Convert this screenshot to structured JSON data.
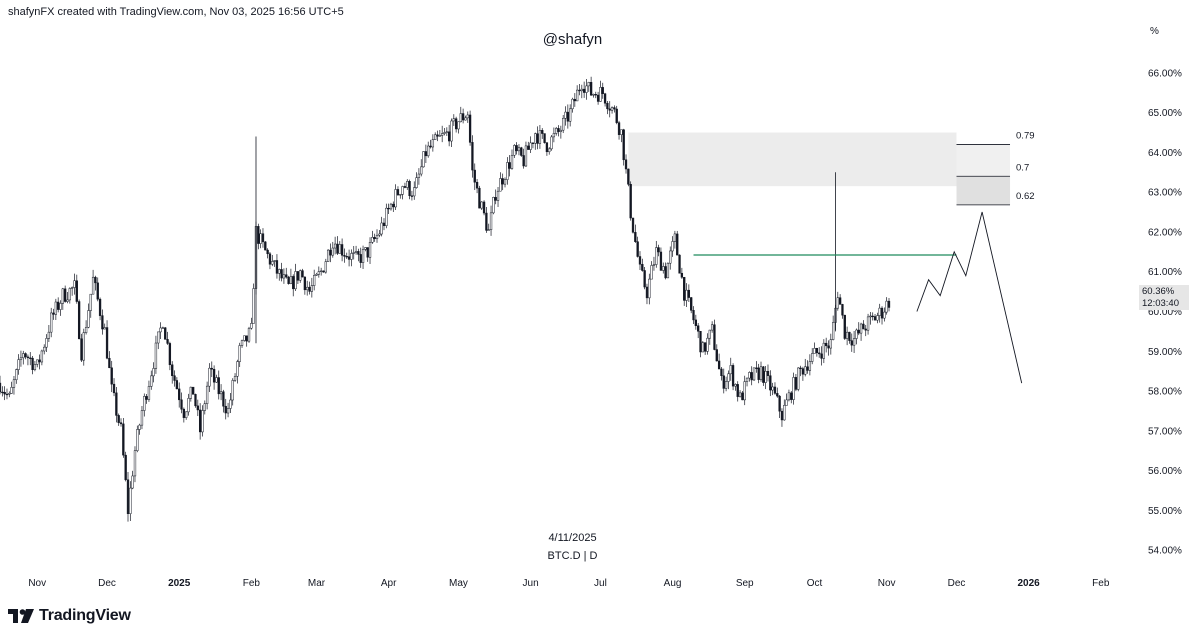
{
  "header": {
    "credit": "shafynFX created with TradingView.com, Nov 03, 2025 16:56 UTC+5",
    "watermark": "@shafyn",
    "percent_unit": "%"
  },
  "footer": {
    "center_date": "4/11/2025",
    "symbol": "BTC.D | D",
    "logo_text": "TradingView"
  },
  "price_tags": {
    "current": "60.36%",
    "countdown": "12:03:40"
  },
  "colors": {
    "candle": "#131722",
    "horizontal_line": "#1f8a5c",
    "zone_fill": "#ececec",
    "fib_fill_light": "#f0f0f0",
    "fib_fill_dark": "#e0e0e0"
  },
  "chart_data": {
    "type": "line",
    "symbol": "BTC.D",
    "interval": "D",
    "y_axis": {
      "unit": "%",
      "range": [
        53.5,
        66.7
      ],
      "ticks": [
        "54.00%",
        "55.00%",
        "56.00%",
        "57.00%",
        "58.00%",
        "59.00%",
        "60.00%",
        "61.00%",
        "62.00%",
        "63.00%",
        "64.00%",
        "65.00%",
        "66.00%"
      ]
    },
    "x_axis": {
      "range": [
        "2024-10-16",
        "2026-02-20"
      ],
      "ticks": [
        {
          "label": "Nov",
          "date": "2024-11-01",
          "bold": false
        },
        {
          "label": "Dec",
          "date": "2024-12-01",
          "bold": false
        },
        {
          "label": "2025",
          "date": "2025-01-01",
          "bold": true
        },
        {
          "label": "Feb",
          "date": "2025-02-01",
          "bold": false
        },
        {
          "label": "Mar",
          "date": "2025-03-01",
          "bold": false
        },
        {
          "label": "Apr",
          "date": "2025-04-01",
          "bold": false
        },
        {
          "label": "May",
          "date": "2025-05-01",
          "bold": false
        },
        {
          "label": "Jun",
          "date": "2025-06-01",
          "bold": false
        },
        {
          "label": "Jul",
          "date": "2025-07-01",
          "bold": false
        },
        {
          "label": "Aug",
          "date": "2025-08-01",
          "bold": false
        },
        {
          "label": "Sep",
          "date": "2025-09-01",
          "bold": false
        },
        {
          "label": "Oct",
          "date": "2025-10-01",
          "bold": false
        },
        {
          "label": "Nov",
          "date": "2025-11-01",
          "bold": false
        },
        {
          "label": "Dec",
          "date": "2025-12-01",
          "bold": false
        },
        {
          "label": "2026",
          "date": "2026-01-01",
          "bold": true
        },
        {
          "label": "Feb",
          "date": "2026-02-01",
          "bold": false
        }
      ]
    },
    "price_path": [
      [
        "2024-10-16",
        58.2
      ],
      [
        "2024-10-20",
        57.8
      ],
      [
        "2024-10-26",
        59.0
      ],
      [
        "2024-11-01",
        58.6
      ],
      [
        "2024-11-07",
        59.8
      ],
      [
        "2024-11-12",
        60.4
      ],
      [
        "2024-11-17",
        60.6
      ],
      [
        "2024-11-20",
        59.0
      ],
      [
        "2024-11-25",
        60.8
      ],
      [
        "2024-11-30",
        59.5
      ],
      [
        "2024-12-03",
        58.0
      ],
      [
        "2024-12-07",
        57.0
      ],
      [
        "2024-12-10",
        55.0
      ],
      [
        "2024-12-13",
        56.5
      ],
      [
        "2024-12-16",
        57.5
      ],
      [
        "2024-12-20",
        58.5
      ],
      [
        "2024-12-25",
        59.8
      ],
      [
        "2024-12-29",
        58.5
      ],
      [
        "2025-01-03",
        57.5
      ],
      [
        "2025-01-07",
        58.0
      ],
      [
        "2025-01-10",
        57.0
      ],
      [
        "2025-01-14",
        58.5
      ],
      [
        "2025-01-18",
        58.0
      ],
      [
        "2025-01-22",
        57.5
      ],
      [
        "2025-01-27",
        59.0
      ],
      [
        "2025-02-01",
        59.5
      ],
      [
        "2025-02-03",
        62.0
      ],
      [
        "2025-02-07",
        61.5
      ],
      [
        "2025-02-12",
        61.0
      ],
      [
        "2025-02-17",
        60.6
      ],
      [
        "2025-02-22",
        61.0
      ],
      [
        "2025-02-26",
        60.5
      ],
      [
        "2025-03-03",
        61.0
      ],
      [
        "2025-03-08",
        61.8
      ],
      [
        "2025-03-13",
        61.5
      ],
      [
        "2025-03-18",
        61.3
      ],
      [
        "2025-03-23",
        61.5
      ],
      [
        "2025-03-28",
        62.0
      ],
      [
        "2025-04-03",
        62.8
      ],
      [
        "2025-04-07",
        63.2
      ],
      [
        "2025-04-12",
        63.0
      ],
      [
        "2025-04-17",
        64.0
      ],
      [
        "2025-04-22",
        64.3
      ],
      [
        "2025-04-27",
        64.5
      ],
      [
        "2025-05-01",
        64.8
      ],
      [
        "2025-05-05",
        65.0
      ],
      [
        "2025-05-07",
        63.5
      ],
      [
        "2025-05-10",
        62.8
      ],
      [
        "2025-05-14",
        62.0
      ],
      [
        "2025-05-17",
        63.0
      ],
      [
        "2025-05-21",
        63.5
      ],
      [
        "2025-05-25",
        64.0
      ],
      [
        "2025-05-29",
        63.8
      ],
      [
        "2025-06-03",
        64.5
      ],
      [
        "2025-06-08",
        64.2
      ],
      [
        "2025-06-13",
        64.5
      ],
      [
        "2025-06-18",
        65.0
      ],
      [
        "2025-06-23",
        65.8
      ],
      [
        "2025-06-27",
        65.5
      ],
      [
        "2025-07-02",
        65.5
      ],
      [
        "2025-07-07",
        65.0
      ],
      [
        "2025-07-10",
        64.5
      ],
      [
        "2025-07-14",
        62.5
      ],
      [
        "2025-07-18",
        61.0
      ],
      [
        "2025-07-21",
        60.5
      ],
      [
        "2025-07-25",
        61.5
      ],
      [
        "2025-07-29",
        61.0
      ],
      [
        "2025-08-02",
        61.8
      ],
      [
        "2025-08-06",
        60.5
      ],
      [
        "2025-08-10",
        59.8
      ],
      [
        "2025-08-14",
        59.0
      ],
      [
        "2025-08-18",
        59.5
      ],
      [
        "2025-08-22",
        58.2
      ],
      [
        "2025-08-26",
        58.5
      ],
      [
        "2025-08-30",
        57.8
      ],
      [
        "2025-09-03",
        58.3
      ],
      [
        "2025-09-08",
        58.5
      ],
      [
        "2025-09-13",
        58.0
      ],
      [
        "2025-09-17",
        57.4
      ],
      [
        "2025-09-21",
        58.0
      ],
      [
        "2025-09-25",
        58.5
      ],
      [
        "2025-09-29",
        58.8
      ],
      [
        "2025-10-03",
        59.0
      ],
      [
        "2025-10-08",
        59.2
      ],
      [
        "2025-10-11",
        60.5
      ],
      [
        "2025-10-14",
        59.5
      ],
      [
        "2025-10-18",
        59.3
      ],
      [
        "2025-10-22",
        59.6
      ],
      [
        "2025-10-26",
        59.8
      ],
      [
        "2025-10-30",
        60.0
      ],
      [
        "2025-11-03",
        60.36
      ]
    ],
    "wick_spikes": [
      {
        "date": "2025-02-03",
        "high": 64.4,
        "low": 59.2
      },
      {
        "date": "2025-10-10",
        "high": 63.5,
        "low": 59.5
      }
    ],
    "supply_zone": {
      "x_start": "2025-07-13",
      "x_end": "2025-12-01",
      "y_low": 63.15,
      "y_high": 64.5
    },
    "horizontal_line": {
      "x_start": "2025-08-10",
      "x_end": "2025-12-01",
      "y": 61.42
    },
    "fib_levels": [
      {
        "label": "0.79",
        "y": 64.2
      },
      {
        "label": "0.7",
        "y": 63.4
      },
      {
        "label": "0.62",
        "y": 62.68
      }
    ],
    "fib_x_range": [
      "2025-12-01",
      "2025-12-24"
    ],
    "projection_path": [
      [
        "2025-11-14",
        60.0
      ],
      [
        "2025-11-19",
        60.8
      ],
      [
        "2025-11-24",
        60.4
      ],
      [
        "2025-11-30",
        61.5
      ],
      [
        "2025-12-05",
        60.9
      ],
      [
        "2025-12-12",
        62.5
      ],
      [
        "2025-12-29",
        58.2
      ]
    ],
    "current_price": 60.36
  }
}
